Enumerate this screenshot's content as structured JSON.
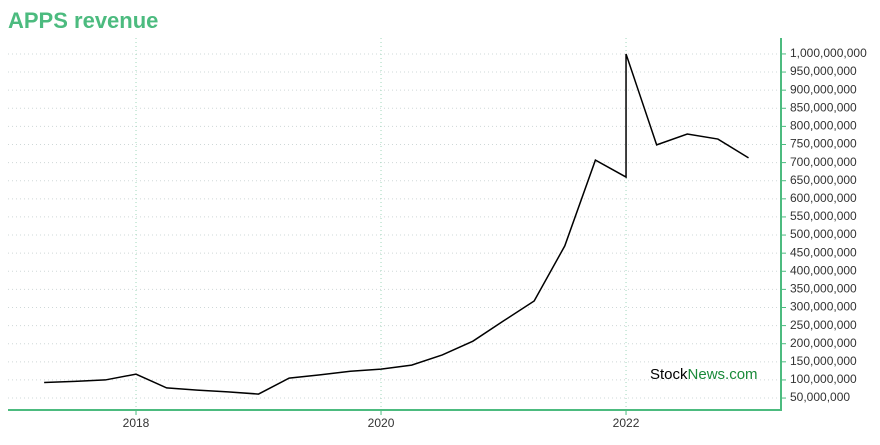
{
  "chart_data": {
    "type": "line",
    "title": "APPS revenue",
    "x": [
      2017.25,
      2017.5,
      2017.75,
      2018.0,
      2018.25,
      2018.5,
      2018.75,
      2019.0,
      2019.25,
      2019.5,
      2019.75,
      2020.0,
      2020.25,
      2020.5,
      2020.75,
      2021.0,
      2021.25,
      2021.5,
      2021.75,
      2022.0,
      2022.0,
      2022.25,
      2022.5,
      2022.75,
      2023.0
    ],
    "series": [
      {
        "name": "Revenue",
        "color": "#000000",
        "values": [
          93000000,
          96000000,
          100000000,
          116000000,
          78000000,
          72000000,
          67000000,
          61000000,
          105000000,
          114000000,
          124000000,
          130000000,
          141000000,
          169000000,
          207000000,
          263000000,
          318000000,
          470000000,
          707000000,
          660000000,
          1000000000,
          749000000,
          779000000,
          765000000,
          713000000
        ]
      }
    ],
    "xlim": [
      2016.955,
      2023.265
    ],
    "xticks": [
      2018,
      2020,
      2022
    ],
    "ylim": [
      17000000,
      1044000000
    ],
    "yticks": [
      {
        "value": 50000000,
        "label": "50,000,000"
      },
      {
        "value": 100000000,
        "label": "100,000,000"
      },
      {
        "value": 150000000,
        "label": "150,000,000"
      },
      {
        "value": 200000000,
        "label": "200,000,000"
      },
      {
        "value": 250000000,
        "label": "250,000,000"
      },
      {
        "value": 300000000,
        "label": "300,000,000"
      },
      {
        "value": 350000000,
        "label": "350,000,000"
      },
      {
        "value": 400000000,
        "label": "400,000,000"
      },
      {
        "value": 450000000,
        "label": "450,000,000"
      },
      {
        "value": 500000000,
        "label": "500,000,000"
      },
      {
        "value": 550000000,
        "label": "550,000,000"
      },
      {
        "value": 600000000,
        "label": "600,000,000"
      },
      {
        "value": 650000000,
        "label": "650,000,000"
      },
      {
        "value": 700000000,
        "label": "700,000,000"
      },
      {
        "value": 750000000,
        "label": "750,000,000"
      },
      {
        "value": 800000000,
        "label": "800,000,000"
      },
      {
        "value": 850000000,
        "label": "850,000,000"
      },
      {
        "value": 900000000,
        "label": "900,000,000"
      },
      {
        "value": 950000000,
        "label": "950,000,000"
      },
      {
        "value": 1000000000,
        "label": "1,000,000,000"
      }
    ],
    "grid": true,
    "axis_color": "#4cbb7f",
    "watermark": {
      "part1": "Stock",
      "part2": "News.com"
    }
  }
}
